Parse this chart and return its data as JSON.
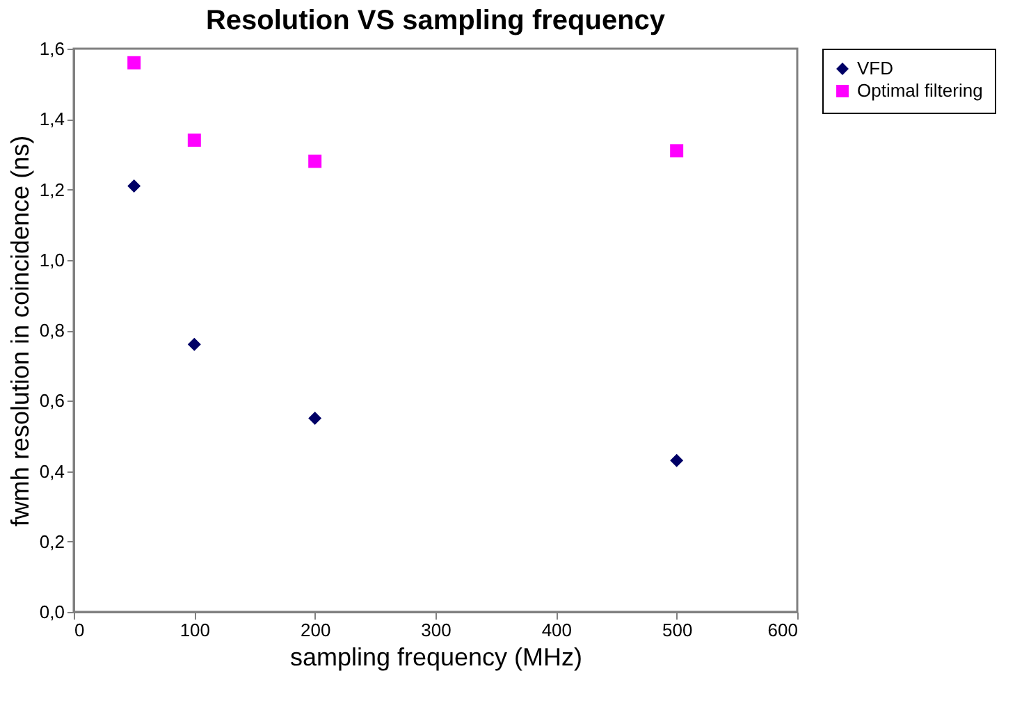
{
  "chart_data": {
    "type": "scatter",
    "title": "Resolution VS sampling frequency",
    "xlabel": "sampling frequency (MHz)",
    "ylabel": "fwmh resolution in coincidence (ns)",
    "x": [
      50,
      100,
      200,
      500
    ],
    "series": [
      {
        "name": "VFD",
        "color": "#000066",
        "marker": "diamond",
        "values": [
          1.21,
          0.76,
          0.55,
          0.43
        ]
      },
      {
        "name": "Optimal filtering",
        "color": "#ff00ff",
        "marker": "square",
        "values": [
          1.56,
          1.34,
          1.28,
          1.31
        ]
      }
    ],
    "xlim": [
      0,
      600
    ],
    "xticks": [
      0,
      100,
      200,
      300,
      400,
      500,
      600
    ],
    "ylim": [
      0,
      1.6
    ],
    "yticks": [
      {
        "value": 0,
        "label": "0,0"
      },
      {
        "value": 0.2,
        "label": "0,2"
      },
      {
        "value": 0.4,
        "label": "0,4"
      },
      {
        "value": 0.6,
        "label": "0,6"
      },
      {
        "value": 0.8,
        "label": "0,8"
      },
      {
        "value": 1.0,
        "label": "1,0"
      },
      {
        "value": 1.2,
        "label": "1,2"
      },
      {
        "value": 1.4,
        "label": "1,4"
      },
      {
        "value": 1.6,
        "label": "1,6"
      }
    ],
    "legend": "right"
  }
}
